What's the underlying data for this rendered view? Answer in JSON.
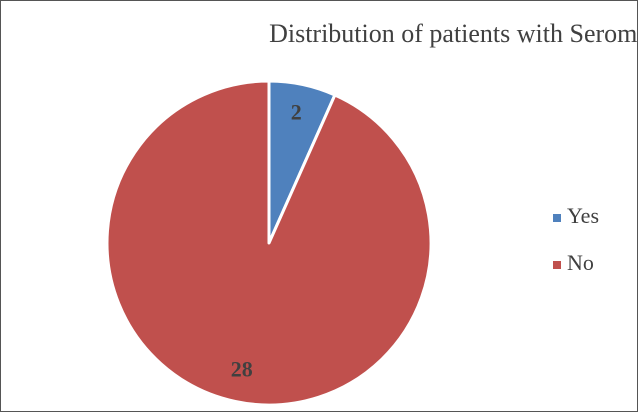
{
  "chart_data": {
    "type": "pie",
    "title": "Distribution of patients with Seroma",
    "categories": [
      "Yes",
      "No"
    ],
    "values": [
      2,
      28
    ],
    "colors": [
      "#4f81bd",
      "#c0504d"
    ],
    "legend": "right"
  }
}
